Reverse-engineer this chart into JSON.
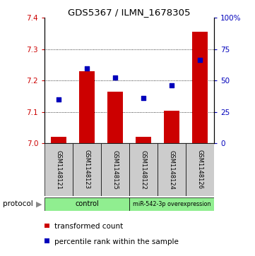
{
  "title": "GDS5367 / ILMN_1678305",
  "samples": [
    "GSM1148121",
    "GSM1148123",
    "GSM1148125",
    "GSM1148122",
    "GSM1148124",
    "GSM1148126"
  ],
  "bar_values": [
    7.02,
    7.23,
    7.165,
    7.02,
    7.105,
    7.355
  ],
  "dot_values": [
    7.14,
    7.24,
    7.21,
    7.145,
    7.185,
    7.265
  ],
  "ylim_left": [
    7.0,
    7.4
  ],
  "ylim_right": [
    0,
    100
  ],
  "yticks_left": [
    7.0,
    7.1,
    7.2,
    7.3,
    7.4
  ],
  "yticks_right": [
    0,
    25,
    50,
    75,
    100
  ],
  "bar_color": "#cc0000",
  "dot_color": "#0000bb",
  "bar_width": 0.55,
  "legend_bar_label": "transformed count",
  "legend_dot_label": "percentile rank within the sample",
  "gray_panel_color": "#cccccc",
  "green_color": "#90ee90",
  "ctrl_label": "control",
  "mir_label": "miR-542-3p overexpression",
  "protocol_label": "protocol"
}
